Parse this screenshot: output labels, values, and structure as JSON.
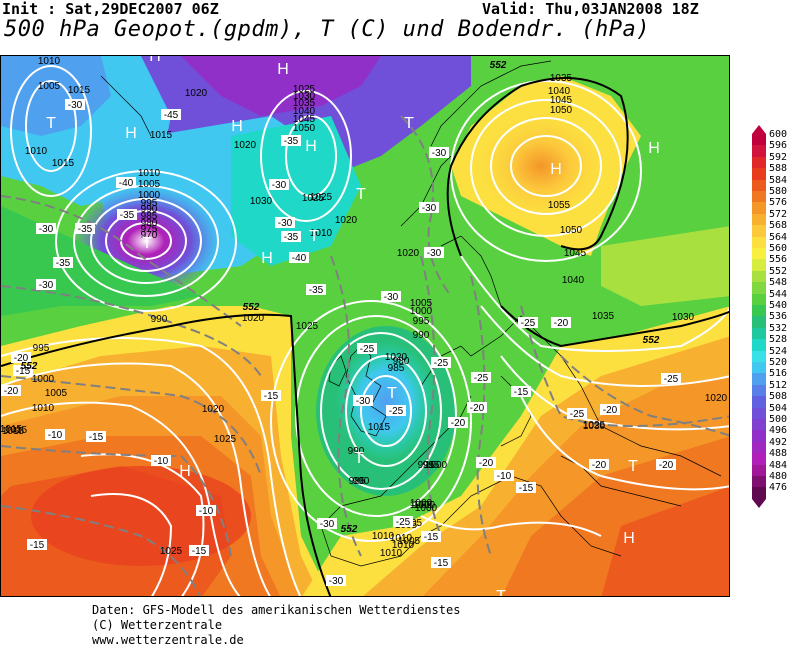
{
  "header": {
    "init": "Init : Sat,29DEC2007 06Z",
    "valid": "Valid: Thu,03JAN2008 18Z",
    "title": "500 hPa Geopot.(gpdm), T (C) und Bodendr. (hPa)"
  },
  "footer": {
    "line1": "Daten: GFS-Modell des amerikanischen Wetterdienstes",
    "line2": "(C) Wetterzentrale",
    "line3": "www.wetterzentrale.de"
  },
  "legend": {
    "levels": [
      "600",
      "596",
      "592",
      "588",
      "584",
      "580",
      "576",
      "572",
      "568",
      "564",
      "560",
      "556",
      "552",
      "548",
      "544",
      "540",
      "536",
      "532",
      "528",
      "524",
      "520",
      "516",
      "512",
      "508",
      "504",
      "500",
      "496",
      "492",
      "488",
      "484",
      "480",
      "476"
    ],
    "colors": [
      "#c0003c",
      "#d2143c",
      "#e02828",
      "#e83c1e",
      "#ec5a1e",
      "#f07820",
      "#f49628",
      "#f8b030",
      "#fcc83c",
      "#fce040",
      "#f8f040",
      "#d8ec40",
      "#a8e040",
      "#80d840",
      "#58d040",
      "#38c850",
      "#28c078",
      "#20c8a0",
      "#20d8c8",
      "#38e0e8",
      "#40c8f0",
      "#50a0f0",
      "#5880e8",
      "#6060e0",
      "#7050d8",
      "#8040d0",
      "#9030c8",
      "#a028c0",
      "#b020b8",
      "#a01898",
      "#801070",
      "#600850"
    ]
  },
  "map": {
    "centers": [
      {
        "type": "H",
        "label": "H"
      },
      {
        "type": "H",
        "label": "H"
      },
      {
        "type": "H",
        "label": "H"
      },
      {
        "type": "H",
        "label": "H"
      },
      {
        "type": "H",
        "label": "H"
      },
      {
        "type": "H",
        "label": "H"
      },
      {
        "type": "H",
        "label": "H"
      },
      {
        "type": "H",
        "label": "H"
      },
      {
        "type": "H",
        "label": "H"
      },
      {
        "type": "H",
        "label": "H"
      },
      {
        "type": "T",
        "label": "T"
      },
      {
        "type": "T",
        "label": "T"
      },
      {
        "type": "T",
        "label": "T"
      },
      {
        "type": "T",
        "label": "T"
      },
      {
        "type": "T",
        "label": "T"
      },
      {
        "type": "T",
        "label": "T"
      },
      {
        "type": "T",
        "label": "T"
      },
      {
        "type": "T",
        "label": "T"
      },
      {
        "type": "T",
        "label": "T"
      }
    ],
    "pressure_labels": [
      "1010",
      "1005",
      "1010",
      "1015",
      "1015",
      "1020",
      "1025",
      "1030",
      "1035",
      "1040",
      "1045",
      "1050",
      "1020",
      "1015",
      "1010",
      "1005",
      "1000",
      "995",
      "990",
      "985",
      "980",
      "975",
      "970",
      "990",
      "995",
      "1000",
      "1005",
      "1010",
      "1015",
      "1020",
      "1025",
      "1030",
      "1035",
      "1040",
      "1045",
      "1050",
      "1055",
      "1050",
      "1045",
      "1040",
      "1035",
      "1030",
      "1025",
      "1020",
      "1010",
      "1005",
      "1000",
      "995",
      "990",
      "985",
      "1025",
      "1020",
      "1015",
      "1010",
      "1005",
      "1000",
      "995",
      "990",
      "985",
      "980",
      "1015",
      "1020",
      "1025",
      "1030",
      "1010",
      "1005",
      "1000",
      "995",
      "1020",
      "1025",
      "1010",
      "1005",
      "1000",
      "995",
      "990",
      "1000",
      "1005",
      "1010",
      "1015",
      "1020",
      "1025"
    ],
    "temp_labels": [
      "-30",
      "-45",
      "-40",
      "-35",
      "-30",
      "-35",
      "-30",
      "-35",
      "-30",
      "-30",
      "-30",
      "-25",
      "-20",
      "-15",
      "-10",
      "-15",
      "-10",
      "-15",
      "-20",
      "-25",
      "-30",
      "-35",
      "-40",
      "-25",
      "-20",
      "-15",
      "-10",
      "-15",
      "-30",
      "-35",
      "-30",
      "-25",
      "-20",
      "-25",
      "-30",
      "-30",
      "-40",
      "-35",
      "-30",
      "-25",
      "-20",
      "-15",
      "-20",
      "-25",
      "-20",
      "-20",
      "-15",
      "-20",
      "-25",
      "-15",
      "-15",
      "-10"
    ],
    "geopot_labels": [
      "552",
      "552",
      "552",
      "552",
      "552"
    ]
  }
}
